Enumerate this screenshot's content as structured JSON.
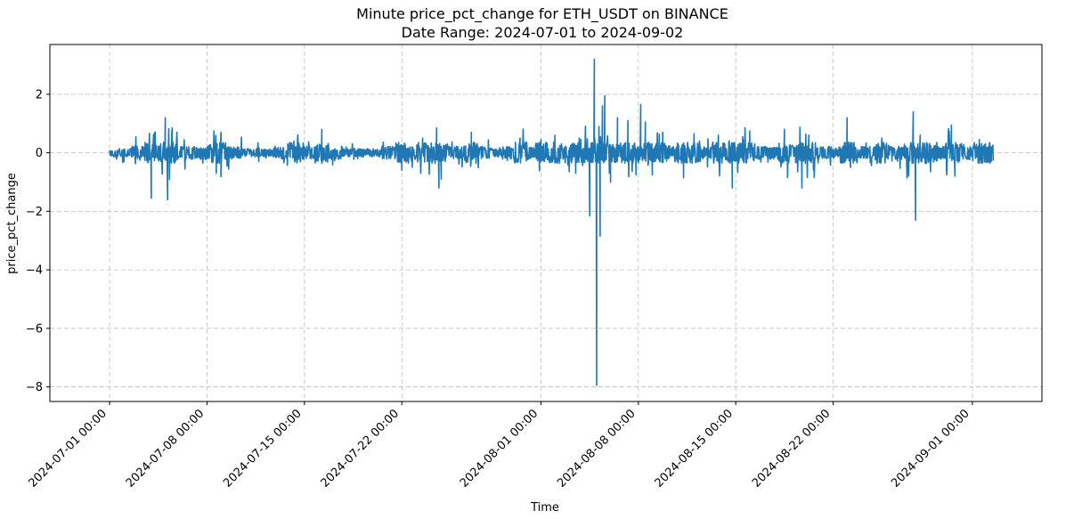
{
  "chart_data": {
    "type": "line",
    "title": "Minute price_pct_change for ETH_USDT on BINANCE",
    "subtitle": "Date Range: 2024-07-01 to 2024-09-02",
    "xlabel": "Time",
    "ylabel": "price_pct_change",
    "ylim": [
      -8.5,
      3.7
    ],
    "xlim": [
      "2024-06-26 17:00",
      "2024-09-06 00:00"
    ],
    "x_ticks": [
      "2024-07-01 00:00",
      "2024-07-08 00:00",
      "2024-07-15 00:00",
      "2024-07-22 00:00",
      "2024-08-01 00:00",
      "2024-08-08 00:00",
      "2024-08-15 00:00",
      "2024-08-22 00:00",
      "2024-09-01 00:00"
    ],
    "y_ticks": [
      2,
      0,
      -2,
      -4,
      -6,
      -8
    ],
    "y_tick_labels": [
      "2",
      "0",
      "−2",
      "−4",
      "−6",
      "−8"
    ],
    "grid": true,
    "line_color": "#1f77b4",
    "series": [
      {
        "start": "2024-07-01 00:00",
        "end": "2024-09-02 12:00",
        "baseline": 0.0,
        "typical_amplitude": 0.1,
        "spikes": [
          {
            "x": "2024-07-04 00:00",
            "y": -1.55
          },
          {
            "x": "2024-07-04 06:00",
            "y": 0.7
          },
          {
            "x": "2024-07-05 00:00",
            "y": 1.2
          },
          {
            "x": "2024-07-05 04:00",
            "y": -1.6
          },
          {
            "x": "2024-07-05 12:00",
            "y": 0.85
          },
          {
            "x": "2024-07-08 12:00",
            "y": 0.75
          },
          {
            "x": "2024-07-08 16:00",
            "y": -0.7
          },
          {
            "x": "2024-07-09 00:00",
            "y": 0.7
          },
          {
            "x": "2024-07-14 06:00",
            "y": 0.4
          },
          {
            "x": "2024-07-16 06:00",
            "y": 0.8
          },
          {
            "x": "2024-07-22 00:00",
            "y": -0.6
          },
          {
            "x": "2024-07-23 12:00",
            "y": 0.5
          },
          {
            "x": "2024-07-24 12:00",
            "y": 0.85
          },
          {
            "x": "2024-07-24 16:00",
            "y": -1.2
          },
          {
            "x": "2024-07-24 20:00",
            "y": -0.9
          },
          {
            "x": "2024-07-27 00:00",
            "y": 0.7
          },
          {
            "x": "2024-07-30 12:00",
            "y": 0.5
          },
          {
            "x": "2024-08-01 00:00",
            "y": 0.45
          },
          {
            "x": "2024-08-02 00:00",
            "y": 0.6
          },
          {
            "x": "2024-08-03 12:00",
            "y": -0.7
          },
          {
            "x": "2024-08-03 18:00",
            "y": 0.5
          },
          {
            "x": "2024-08-04 12:00",
            "y": -2.15
          },
          {
            "x": "2024-08-04 20:00",
            "y": 3.2
          },
          {
            "x": "2024-08-05 00:00",
            "y": -7.95
          },
          {
            "x": "2024-08-05 04:00",
            "y": 0.9
          },
          {
            "x": "2024-08-05 06:00",
            "y": -2.85
          },
          {
            "x": "2024-08-05 10:00",
            "y": 1.6
          },
          {
            "x": "2024-08-05 14:00",
            "y": 1.95
          },
          {
            "x": "2024-08-06 00:00",
            "y": -1.0
          },
          {
            "x": "2024-08-06 12:00",
            "y": 1.2
          },
          {
            "x": "2024-08-07 06:00",
            "y": 1.1
          },
          {
            "x": "2024-08-07 20:00",
            "y": -0.75
          },
          {
            "x": "2024-08-08 04:00",
            "y": 1.65
          },
          {
            "x": "2024-08-08 12:00",
            "y": 1.05
          },
          {
            "x": "2024-08-09 00:00",
            "y": -0.75
          },
          {
            "x": "2024-08-09 18:00",
            "y": 0.7
          },
          {
            "x": "2024-08-11 06:00",
            "y": -0.85
          },
          {
            "x": "2024-08-12 00:00",
            "y": 0.65
          },
          {
            "x": "2024-08-13 18:00",
            "y": 0.6
          },
          {
            "x": "2024-08-14 18:00",
            "y": -1.2
          },
          {
            "x": "2024-08-15 12:00",
            "y": 0.55
          },
          {
            "x": "2024-08-16 00:00",
            "y": 0.75
          },
          {
            "x": "2024-08-18 12:00",
            "y": 0.8
          },
          {
            "x": "2024-08-19 18:00",
            "y": -1.2
          },
          {
            "x": "2024-08-20 06:00",
            "y": 0.6
          },
          {
            "x": "2024-08-23 00:00",
            "y": 1.2
          },
          {
            "x": "2024-08-23 06:00",
            "y": -0.5
          },
          {
            "x": "2024-08-25 12:00",
            "y": 0.5
          },
          {
            "x": "2024-08-27 18:00",
            "y": 1.4
          },
          {
            "x": "2024-08-27 22:00",
            "y": -2.3
          },
          {
            "x": "2024-08-28 06:00",
            "y": 0.6
          },
          {
            "x": "2024-08-29 00:00",
            "y": -0.65
          },
          {
            "x": "2024-08-30 12:00",
            "y": 0.95
          },
          {
            "x": "2024-08-30 18:00",
            "y": -0.8
          },
          {
            "x": "2024-09-01 12:00",
            "y": 0.45
          },
          {
            "x": "2024-09-02 06:00",
            "y": 0.35
          }
        ]
      }
    ]
  }
}
